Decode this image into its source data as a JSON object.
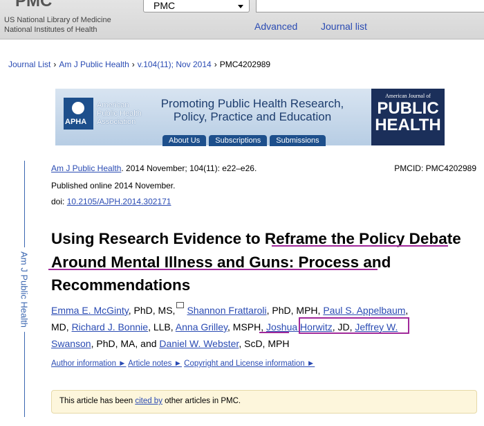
{
  "header": {
    "logo": "PMC",
    "org": [
      "US National Library of Medicine",
      "National Institutes of Health"
    ],
    "database_select": "PMC",
    "links": [
      "Advanced",
      "Journal list"
    ]
  },
  "breadcrumb": {
    "items": [
      "Journal List",
      "Am J Public Health",
      "v.104(11); Nov 2014",
      "PMC4202989"
    ],
    "separator": "›"
  },
  "banner": {
    "org": [
      "American",
      "Public Health",
      "Association"
    ],
    "logo_abbr": "APHA",
    "tagline": [
      "Promoting Public Health Research,",
      "Policy, Practice and Education"
    ],
    "tabs": [
      "About Us",
      "Subscriptions",
      "Submissions"
    ],
    "journal": [
      "American Journal of",
      "PUBLIC",
      "HEALTH"
    ]
  },
  "sidebar": "Am J Public Health",
  "citation": {
    "journal": "Am J Public Health",
    "details": ". 2014 November; 104(11): e22–e26.",
    "pmcid": "PMCID: PMC4202989",
    "published": "Published online 2014 November.",
    "doi_label": "doi: ",
    "doi": "10.2105/AJPH.2014.302171"
  },
  "title": "Using Research Evidence to Reframe the Policy Debate Around Mental Illness and Guns: Process and Recommendations",
  "authors": [
    [
      {
        "text": "Emma E. McGinty",
        "link": true
      },
      {
        "text": ", PhD, MS,",
        "link": false
      },
      {
        "text": "Shannon Frattaroli",
        "link": true
      },
      {
        "text": ", PhD, MPH, ",
        "link": false
      },
      {
        "text": "Paul S. Appelbaum",
        "link": true
      },
      {
        "text": ",",
        "link": false
      }
    ],
    [
      {
        "text": "MD, ",
        "link": false
      },
      {
        "text": "Richard J. Bonnie",
        "link": true
      },
      {
        "text": ", LLB, ",
        "link": false
      },
      {
        "text": "Anna Grilley",
        "link": true
      },
      {
        "text": ", MSPH, ",
        "link": false
      },
      {
        "text": "Joshua Horwitz",
        "link": true
      },
      {
        "text": ", JD, ",
        "link": false
      },
      {
        "text": "Jeffrey W.",
        "link": true
      }
    ],
    [
      {
        "text": "Swanson",
        "link": true
      },
      {
        "text": ", PhD, MA, and ",
        "link": false
      },
      {
        "text": "Daniel W. Webster",
        "link": true
      },
      {
        "text": ", ScD, MPH",
        "link": false
      }
    ]
  ],
  "info_links": [
    "Author information ►",
    "Article notes ►",
    "Copyright and License information ►"
  ],
  "cited_notice": {
    "before": "This article has been ",
    "link": "cited by",
    "after": " other articles in PMC."
  }
}
